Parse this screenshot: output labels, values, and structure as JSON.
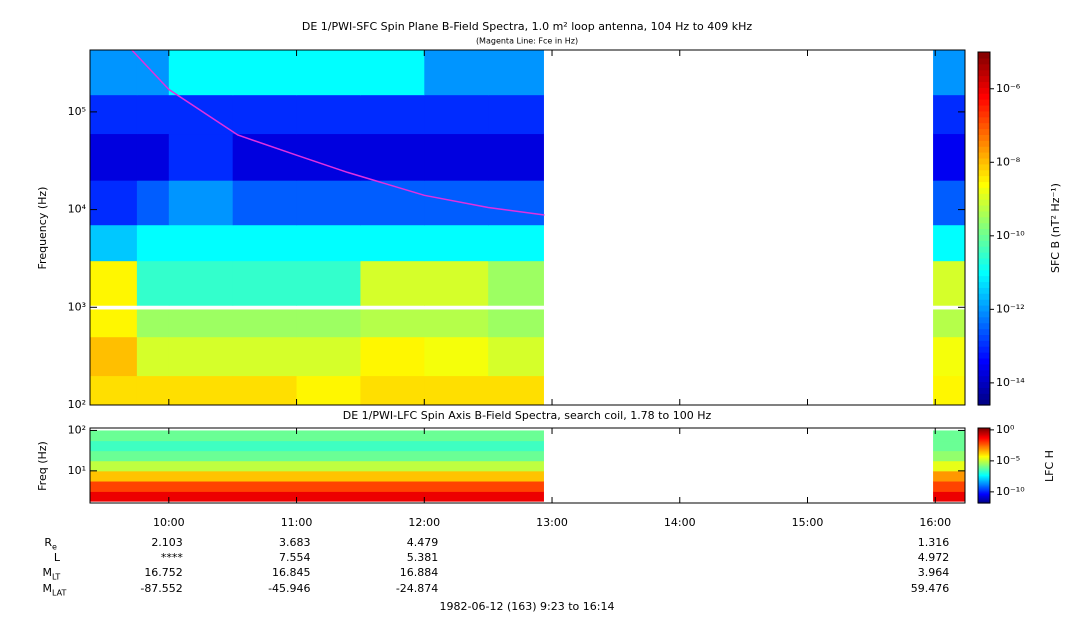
{
  "chart_data": [
    {
      "type": "heatmap",
      "title": "DE 1/PWI-SFC  Spin Plane B-Field Spectra, 1.0 m² loop antenna, 104 Hz to 409 kHz",
      "subtitle": "(Magenta Line: Fce in Hz)",
      "ylabel": "Frequency (Hz)",
      "xlim": [
        9.383,
        16.233
      ],
      "xticks": [
        10,
        11,
        12,
        13,
        14,
        15,
        16
      ],
      "ylim": [
        100,
        430000
      ],
      "yscale": "log",
      "yticks": [
        {
          "value": 100,
          "label": "10²"
        },
        {
          "value": 1000,
          "label": "10³"
        },
        {
          "value": 10000,
          "label": "10⁴"
        },
        {
          "value": 100000,
          "label": "10⁵"
        }
      ],
      "x_edges": [
        9.383,
        9.75,
        10.0,
        10.5,
        11.0,
        11.5,
        12.0,
        12.5,
        12.933,
        15.983,
        16.233
      ],
      "y_edges": [
        100,
        200,
        500,
        950,
        1050,
        3000,
        7000,
        20000,
        60000,
        150000,
        430000
      ],
      "values": [
        [
          5e-09,
          5e-09,
          5e-09,
          5e-09,
          3e-09,
          5e-09,
          5e-09,
          5e-09,
          null,
          3e-09
        ],
        [
          1e-08,
          1e-09,
          1e-09,
          1e-09,
          1e-09,
          3e-09,
          2e-09,
          1e-09,
          null,
          2e-09
        ],
        [
          3e-09,
          3e-10,
          3e-10,
          3e-10,
          3e-10,
          5e-10,
          5e-10,
          3e-10,
          null,
          5e-10
        ],
        [
          null,
          null,
          null,
          null,
          null,
          null,
          null,
          null,
          null,
          null
        ],
        [
          3e-09,
          3e-11,
          3e-11,
          3e-11,
          3e-11,
          1e-09,
          1e-09,
          3e-10,
          null,
          1e-09
        ],
        [
          3e-12,
          1e-11,
          1e-11,
          1e-11,
          1e-11,
          1e-11,
          1e-11,
          1e-11,
          null,
          1e-11
        ],
        [
          1e-13,
          3e-13,
          1e-12,
          3e-13,
          3e-13,
          3e-13,
          3e-13,
          3e-13,
          null,
          3e-13
        ],
        [
          2e-14,
          2e-14,
          1e-13,
          2e-14,
          2e-14,
          2e-14,
          2e-14,
          2e-14,
          null,
          3e-14
        ],
        [
          1e-13,
          1e-13,
          1e-13,
          1e-13,
          1e-13,
          1e-13,
          1e-13,
          1e-13,
          null,
          1e-13
        ],
        [
          1e-12,
          1e-12,
          1e-11,
          1e-11,
          1e-11,
          1e-11,
          1e-12,
          1e-12,
          null,
          1e-12
        ]
      ],
      "overlay": {
        "color": "#e030e0",
        "x": [
          9.71,
          10.0,
          10.54,
          11.0,
          11.4,
          12.0,
          12.5,
          12.94
        ],
        "y": [
          430000,
          170000,
          58000,
          36000,
          24000,
          14000,
          10500,
          8800
        ]
      },
      "colorbar": {
        "label": "SFC B (nT² Hz⁻¹)",
        "colormap": "jet",
        "scale": "log",
        "clim": [
          2.5e-15,
          1e-05
        ],
        "ticks": [
          {
            "value": 1e-06,
            "label": "10⁻⁶"
          },
          {
            "value": 1e-08,
            "label": "10⁻⁸"
          },
          {
            "value": 1e-10,
            "label": "10⁻¹⁰"
          },
          {
            "value": 1e-12,
            "label": "10⁻¹²"
          },
          {
            "value": 1e-14,
            "label": "10⁻¹⁴"
          }
        ]
      }
    },
    {
      "type": "heatmap",
      "title": "DE 1/PWI-LFC  Spin Axis B-Field Spectra, search coil, 1.78 to 100 Hz",
      "ylabel": "Freq (Hz)",
      "xlim": [
        9.383,
        16.233
      ],
      "xticks": [
        {
          "value": 10,
          "label": "10:00"
        },
        {
          "value": 11,
          "label": "11:00"
        },
        {
          "value": 12,
          "label": "12:00"
        },
        {
          "value": 13,
          "label": "13:00"
        },
        {
          "value": 14,
          "label": "14:00"
        },
        {
          "value": 15,
          "label": "15:00"
        },
        {
          "value": 16,
          "label": "16:00"
        }
      ],
      "ylim": [
        1.6,
        115
      ],
      "yscale": "log",
      "yticks": [
        {
          "value": 10,
          "label": "10¹"
        },
        {
          "value": 100,
          "label": "10²"
        }
      ],
      "x_edges": [
        9.383,
        12.933,
        15.983,
        16.233
      ],
      "y_edges": [
        1.78,
        3.1,
        5.6,
        10,
        17.8,
        31.6,
        56,
        100
      ],
      "values": [
        [
          0.1,
          null,
          0.1
        ],
        [
          0.01,
          null,
          0.01
        ],
        [
          0.0003,
          null,
          0.001
        ],
        [
          1e-05,
          null,
          3e-05
        ],
        [
          1e-06,
          null,
          3e-06
        ],
        [
          3e-07,
          null,
          1e-06
        ],
        [
          1e-06,
          null,
          1e-06
        ]
      ],
      "colorbar": {
        "label": "LFC H",
        "colormap": "jet",
        "scale": "log",
        "clim": [
          1.6e-12,
          2
        ],
        "ticks": [
          {
            "value": 1,
            "label": "10⁰"
          },
          {
            "value": 1e-05,
            "label": "10⁻⁵"
          },
          {
            "value": 1e-10,
            "label": "10⁻¹⁰"
          }
        ]
      }
    }
  ],
  "ephemeris": {
    "labels": [
      {
        "text": "R",
        "sub": "e"
      },
      {
        "text": "L"
      },
      {
        "text": "M",
        "sub": "LT"
      },
      {
        "text": "M",
        "sub": "LAT"
      }
    ],
    "rows": [
      [
        "2.103",
        "3.683",
        "4.479",
        null,
        null,
        null,
        "1.316"
      ],
      [
        "****",
        "7.554",
        "5.381",
        null,
        null,
        null,
        "4.972"
      ],
      [
        "16.752",
        "16.845",
        "16.884",
        null,
        null,
        null,
        "3.964"
      ],
      [
        "-87.552",
        "-45.946",
        "-24.874",
        null,
        null,
        null,
        "59.476"
      ]
    ]
  },
  "footer": "1982-06-12 (163) 9:23 to 16:14"
}
